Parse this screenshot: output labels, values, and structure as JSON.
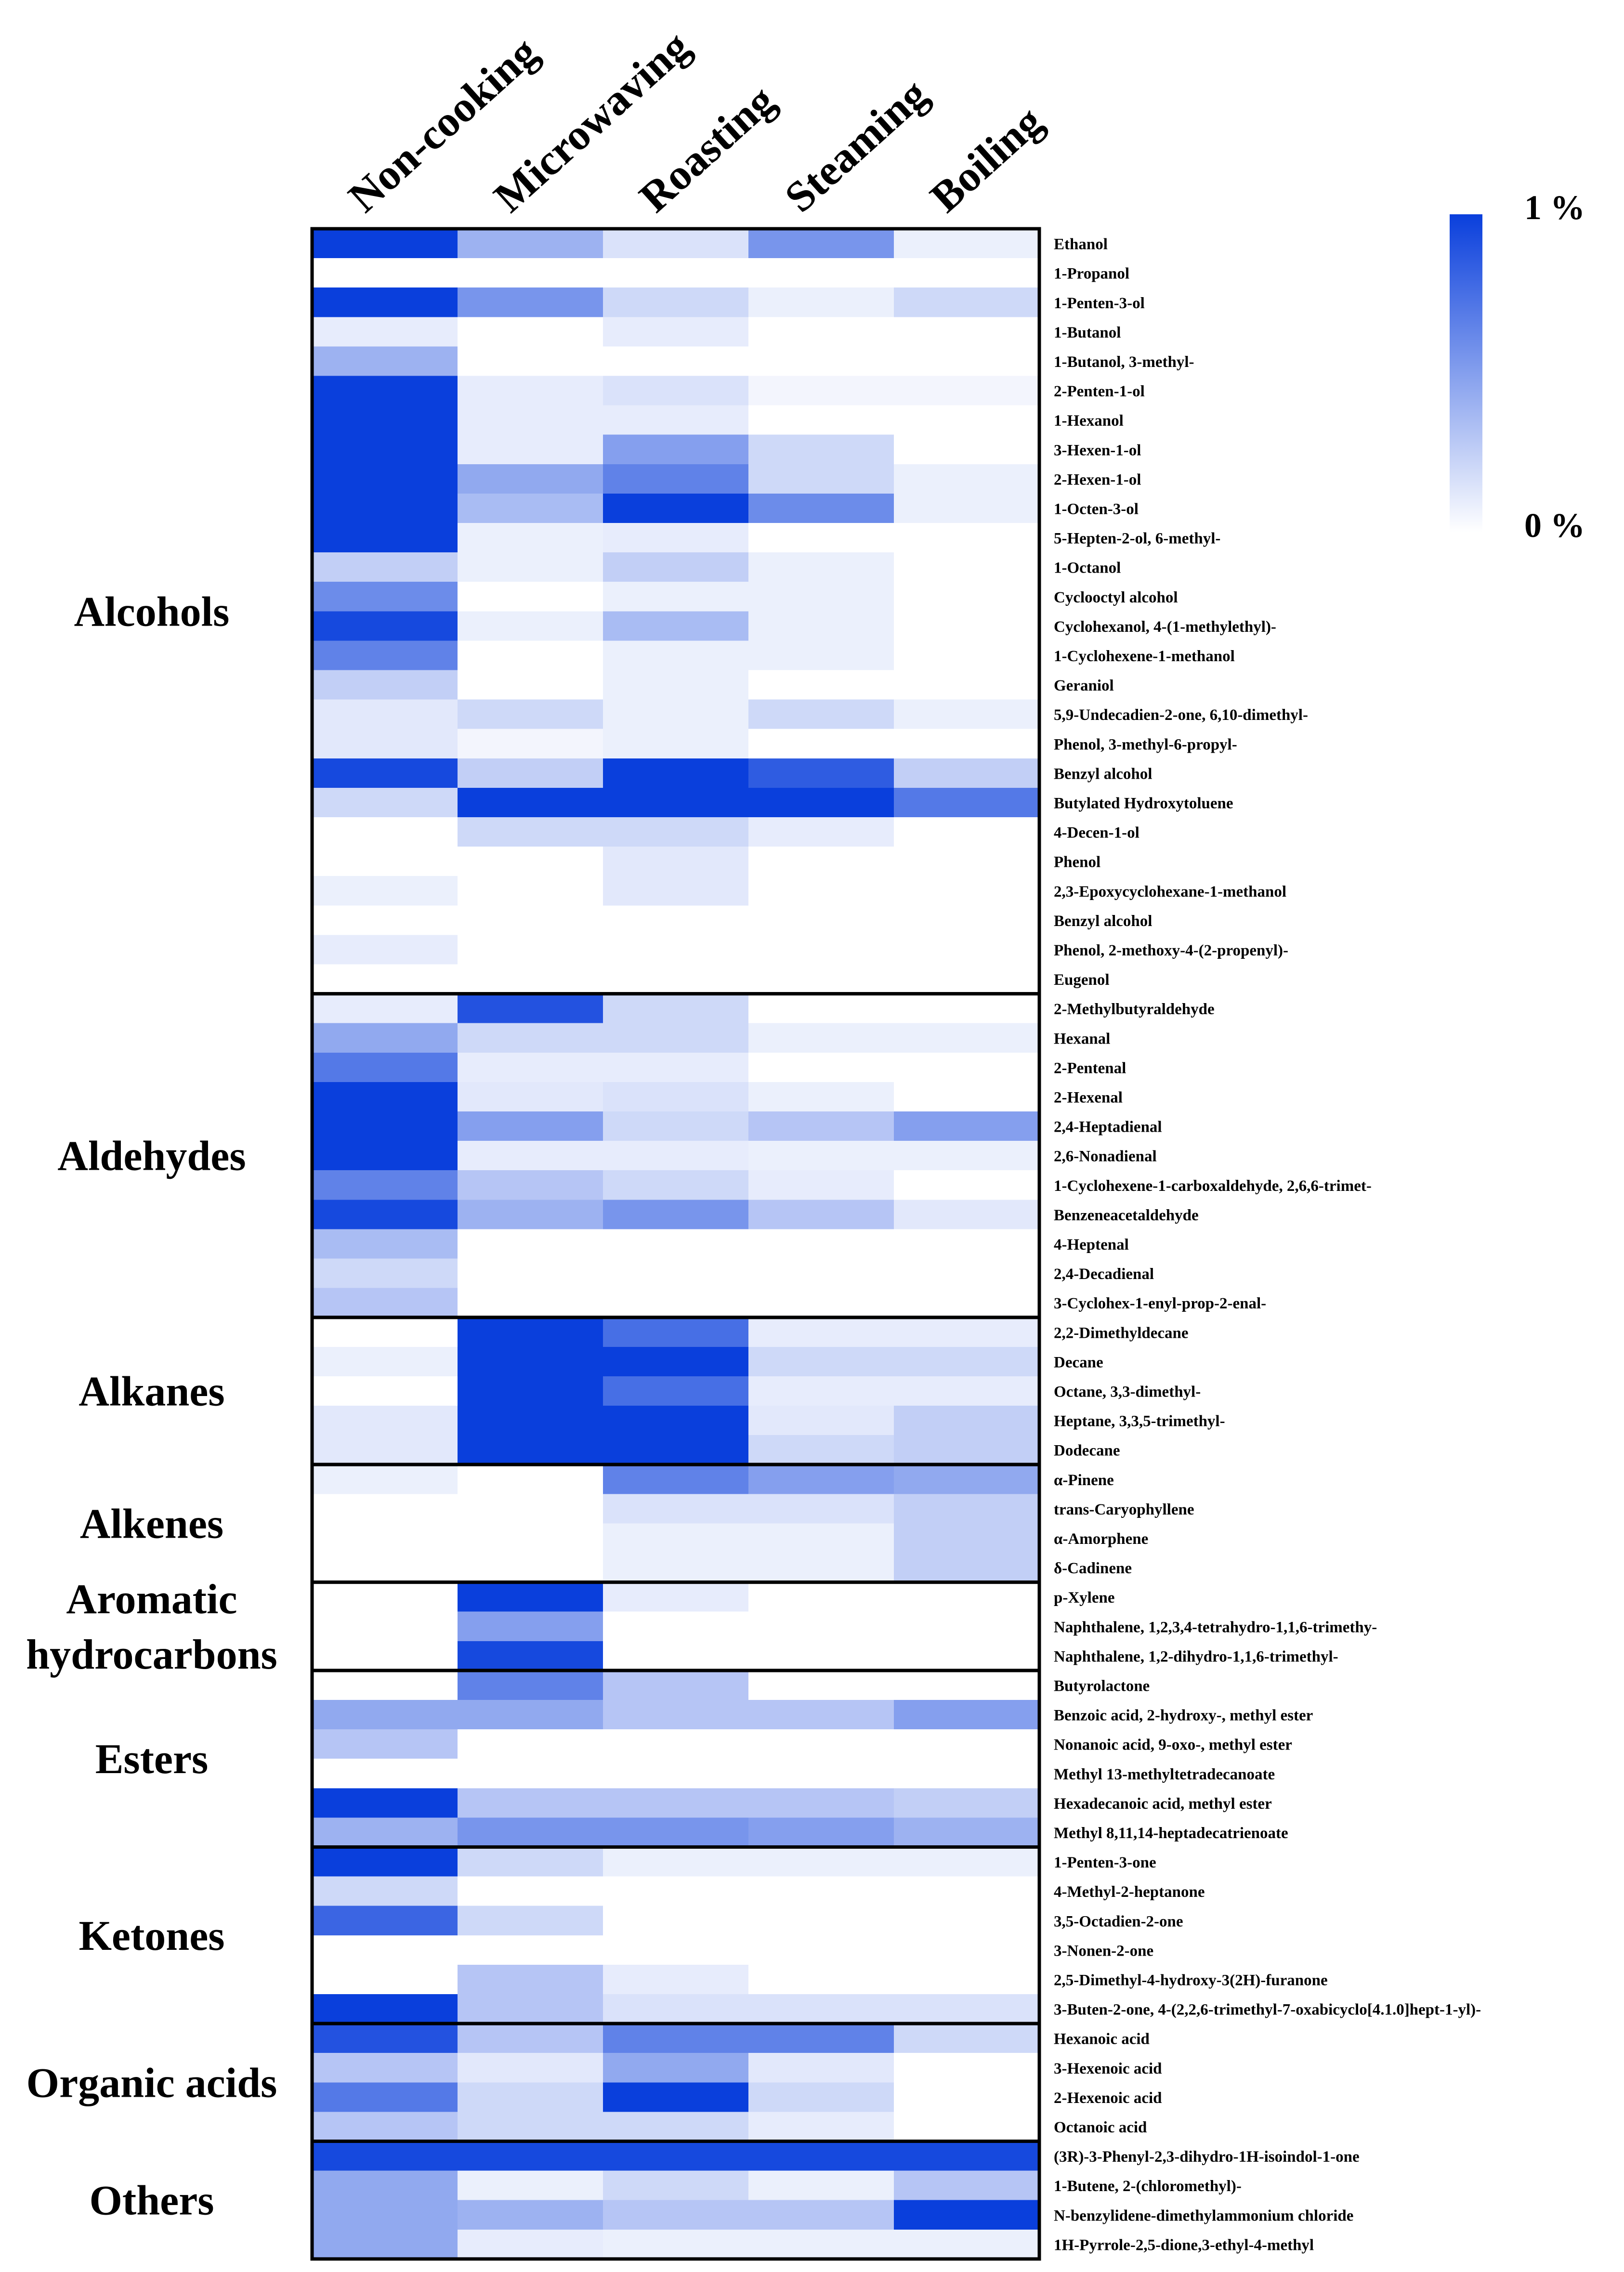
{
  "chart_data": {
    "type": "heatmap",
    "title": "",
    "columns": [
      "Non-cooking",
      "Microwaving",
      "Roasting",
      "Steaming",
      "Boiling"
    ],
    "colorbar": {
      "max_label": "1 %",
      "min_label": "0 %",
      "range": [
        0,
        1
      ],
      "unit": "%"
    },
    "colors": {
      "high": "#0a3fdc",
      "low": "#ffffff",
      "grid": "#000000"
    },
    "groups": [
      {
        "name": "Alcohols",
        "start": 0,
        "count": 26
      },
      {
        "name": "Aldehydes",
        "start": 26,
        "count": 11
      },
      {
        "name": "Alkanes",
        "start": 37,
        "count": 5
      },
      {
        "name": "Alkenes",
        "start": 42,
        "count": 4
      },
      {
        "name": "Aromatic hydrocarbons",
        "start": 46,
        "count": 3
      },
      {
        "name": "Esters",
        "start": 49,
        "count": 6
      },
      {
        "name": "Ketones",
        "start": 55,
        "count": 6
      },
      {
        "name": "Organic acids",
        "start": 61,
        "count": 4
      },
      {
        "name": "Others",
        "start": 65,
        "count": 4
      }
    ],
    "rows": [
      {
        "label": "Ethanol",
        "values": [
          1.0,
          0.4,
          0.15,
          0.55,
          0.08
        ]
      },
      {
        "label": "1-Propanol",
        "values": [
          0,
          0,
          0,
          0,
          0
        ]
      },
      {
        "label": "1-Penten-3-ol",
        "values": [
          1.0,
          0.55,
          0.2,
          0.08,
          0.2
        ]
      },
      {
        "label": "1-Butanol",
        "values": [
          0.1,
          0,
          0.1,
          0,
          0
        ]
      },
      {
        "label": "1-Butanol, 3-methyl-",
        "values": [
          0.4,
          0,
          0,
          0,
          0
        ]
      },
      {
        "label": "2-Penten-1-ol",
        "values": [
          1.0,
          0.1,
          0.15,
          0.05,
          0.05
        ]
      },
      {
        "label": "1-Hexanol",
        "values": [
          1.0,
          0.1,
          0.1,
          0,
          0
        ]
      },
      {
        "label": "3-Hexen-1-ol",
        "values": [
          1.0,
          0.1,
          0.5,
          0.2,
          0
        ]
      },
      {
        "label": "2-Hexen-1-ol",
        "values": [
          1.0,
          0.45,
          0.65,
          0.2,
          0.08
        ]
      },
      {
        "label": "1-Octen-3-ol",
        "values": [
          1.0,
          0.35,
          1.0,
          0.6,
          0.08
        ]
      },
      {
        "label": "5-Hepten-2-ol, 6-methyl-",
        "values": [
          1.0,
          0.08,
          0.1,
          0,
          0
        ]
      },
      {
        "label": "1-Octanol",
        "values": [
          0.25,
          0.08,
          0.25,
          0.08,
          0
        ]
      },
      {
        "label": "Cyclooctyl alcohol",
        "values": [
          0.6,
          0,
          0.08,
          0.08,
          0
        ]
      },
      {
        "label": "Cyclohexanol, 4-(1-methylethyl)-",
        "values": [
          0.95,
          0.08,
          0.35,
          0.08,
          0
        ]
      },
      {
        "label": "1-Cyclohexene-1-methanol",
        "values": [
          0.65,
          0,
          0.08,
          0.08,
          0
        ]
      },
      {
        "label": "Geraniol",
        "values": [
          0.25,
          0,
          0.08,
          0,
          0
        ]
      },
      {
        "label": "5,9-Undecadien-2-one, 6,10-dimethyl-",
        "values": [
          0.12,
          0.2,
          0.08,
          0.2,
          0.08
        ]
      },
      {
        "label": "Phenol, 3-methyl-6-propyl-",
        "values": [
          0.12,
          0.05,
          0.08,
          0,
          0
        ]
      },
      {
        "label": "Benzyl alcohol",
        "values": [
          0.95,
          0.25,
          1.0,
          0.85,
          0.25
        ]
      },
      {
        "label": "Butylated Hydroxytoluene",
        "values": [
          0.2,
          1.0,
          1.0,
          1.0,
          0.7
        ]
      },
      {
        "label": "4-Decen-1-ol",
        "values": [
          0,
          0.2,
          0.2,
          0.1,
          0
        ]
      },
      {
        "label": "Phenol",
        "values": [
          0,
          0,
          0.12,
          0,
          0
        ]
      },
      {
        "label": "2,3-Epoxycyclohexane-1-methanol",
        "values": [
          0.08,
          0,
          0.12,
          0,
          0
        ]
      },
      {
        "label": "Benzyl alcohol",
        "values": [
          0,
          0,
          0,
          0,
          0
        ]
      },
      {
        "label": "Phenol, 2-methoxy-4-(2-propenyl)-",
        "values": [
          0.1,
          0,
          0,
          0,
          0
        ]
      },
      {
        "label": "Eugenol",
        "values": [
          0,
          0,
          0,
          0,
          0
        ]
      },
      {
        "label": "2-Methylbutyraldehyde",
        "values": [
          0.1,
          0.9,
          0.2,
          0,
          0
        ]
      },
      {
        "label": "Hexanal",
        "values": [
          0.45,
          0.2,
          0.2,
          0.08,
          0.08
        ]
      },
      {
        "label": "2-Pentenal",
        "values": [
          0.7,
          0.1,
          0.1,
          0,
          0
        ]
      },
      {
        "label": "2-Hexenal",
        "values": [
          1.0,
          0.12,
          0.15,
          0.08,
          0
        ]
      },
      {
        "label": "2,4-Heptadienal",
        "values": [
          1.0,
          0.5,
          0.2,
          0.3,
          0.5
        ]
      },
      {
        "label": "2,6-Nonadienal",
        "values": [
          1.0,
          0.1,
          0.1,
          0.08,
          0.08
        ]
      },
      {
        "label": "1-Cyclohexene-1-carboxaldehyde, 2,6,6-trimet-",
        "values": [
          0.65,
          0.3,
          0.2,
          0.1,
          0
        ]
      },
      {
        "label": "Benzeneacetaldehyde",
        "values": [
          0.95,
          0.4,
          0.55,
          0.3,
          0.12
        ]
      },
      {
        "label": "4-Heptenal",
        "values": [
          0.35,
          0,
          0,
          0,
          0
        ]
      },
      {
        "label": "2,4-Decadienal",
        "values": [
          0.2,
          0,
          0,
          0,
          0
        ]
      },
      {
        "label": "3-Cyclohex-1-enyl-prop-2-enal-",
        "values": [
          0.3,
          0,
          0,
          0,
          0
        ]
      },
      {
        "label": "2,2-Dimethyldecane",
        "values": [
          0,
          1.0,
          0.75,
          0.1,
          0.1
        ]
      },
      {
        "label": "Decane",
        "values": [
          0.08,
          1.0,
          1.0,
          0.2,
          0.2
        ]
      },
      {
        "label": "Octane, 3,3-dimethyl-",
        "values": [
          0,
          1.0,
          0.75,
          0.1,
          0.1
        ]
      },
      {
        "label": "Heptane, 3,3,5-trimethyl-",
        "values": [
          0.12,
          1.0,
          1.0,
          0.12,
          0.25
        ]
      },
      {
        "label": "Dodecane",
        "values": [
          0.12,
          1.0,
          1.0,
          0.2,
          0.25
        ]
      },
      {
        "label": "α-Pinene",
        "values": [
          0.08,
          0,
          0.65,
          0.5,
          0.45
        ]
      },
      {
        "label": "trans-Caryophyllene",
        "values": [
          0,
          0,
          0.15,
          0.15,
          0.25
        ]
      },
      {
        "label": "α-Amorphene",
        "values": [
          0,
          0,
          0.08,
          0.08,
          0.25
        ]
      },
      {
        "label": "δ-Cadinene",
        "values": [
          0,
          0,
          0.08,
          0.08,
          0.25
        ]
      },
      {
        "label": "p-Xylene",
        "values": [
          0,
          1.0,
          0.1,
          0,
          0
        ]
      },
      {
        "label": "Naphthalene, 1,2,3,4-tetrahydro-1,1,6-trimethy-",
        "values": [
          0,
          0.5,
          0,
          0,
          0
        ]
      },
      {
        "label": "Naphthalene, 1,2-dihydro-1,1,6-trimethyl-",
        "values": [
          0,
          0.95,
          0,
          0,
          0
        ]
      },
      {
        "label": "Butyrolactone",
        "values": [
          0,
          0.65,
          0.3,
          0,
          0
        ]
      },
      {
        "label": "Benzoic acid, 2-hydroxy-, methyl ester",
        "values": [
          0.45,
          0.45,
          0.3,
          0.3,
          0.5
        ]
      },
      {
        "label": "Nonanoic acid, 9-oxo-, methyl ester",
        "values": [
          0.3,
          0,
          0,
          0,
          0
        ]
      },
      {
        "label": "Methyl 13-methyltetradecanoate",
        "values": [
          0,
          0,
          0,
          0,
          0
        ]
      },
      {
        "label": "Hexadecanoic acid, methyl ester",
        "values": [
          1.0,
          0.3,
          0.3,
          0.3,
          0.25
        ]
      },
      {
        "label": "Methyl 8,11,14-heptadecatrienoate",
        "values": [
          0.4,
          0.55,
          0.55,
          0.5,
          0.4
        ]
      },
      {
        "label": "1-Penten-3-one",
        "values": [
          1.0,
          0.2,
          0.08,
          0.08,
          0.08
        ]
      },
      {
        "label": "4-Methyl-2-heptanone",
        "values": [
          0.2,
          0,
          0,
          0,
          0
        ]
      },
      {
        "label": "3,5-Octadien-2-one",
        "values": [
          0.8,
          0.2,
          0,
          0,
          0
        ]
      },
      {
        "label": "3-Nonen-2-one",
        "values": [
          0,
          0,
          0,
          0,
          0
        ]
      },
      {
        "label": "2,5-Dimethyl-4-hydroxy-3(2H)-furanone",
        "values": [
          0,
          0.3,
          0.1,
          0,
          0
        ]
      },
      {
        "label": "3-Buten-2-one, 4-(2,2,6-trimethyl-7-oxabicyclo[4.1.0]hept-1-yl)-",
        "values": [
          1.0,
          0.3,
          0.15,
          0.15,
          0.15
        ]
      },
      {
        "label": "Hexanoic acid",
        "values": [
          0.9,
          0.3,
          0.65,
          0.65,
          0.2
        ]
      },
      {
        "label": "3-Hexenoic acid",
        "values": [
          0.3,
          0.12,
          0.45,
          0.12,
          0
        ]
      },
      {
        "label": "2-Hexenoic acid",
        "values": [
          0.7,
          0.2,
          1.0,
          0.2,
          0
        ]
      },
      {
        "label": "Octanoic acid",
        "values": [
          0.3,
          0.2,
          0.2,
          0.1,
          0
        ]
      },
      {
        "label": "(3R)-3-Phenyl-2,3-dihydro-1H-isoindol-1-one",
        "values": [
          0.95,
          0.95,
          0.95,
          0.95,
          0.95
        ]
      },
      {
        "label": "1-Butene, 2-(chloromethyl)-",
        "values": [
          0.45,
          0.08,
          0.2,
          0.08,
          0.3
        ]
      },
      {
        "label": "N-benzylidene-dimethylammonium chloride",
        "values": [
          0.45,
          0.4,
          0.3,
          0.3,
          1.0
        ]
      },
      {
        "label": "1H-Pyrrole-2,5-dione,3-ethyl-4-methyl",
        "values": [
          0.45,
          0.1,
          0.08,
          0.08,
          0.08
        ]
      }
    ]
  }
}
